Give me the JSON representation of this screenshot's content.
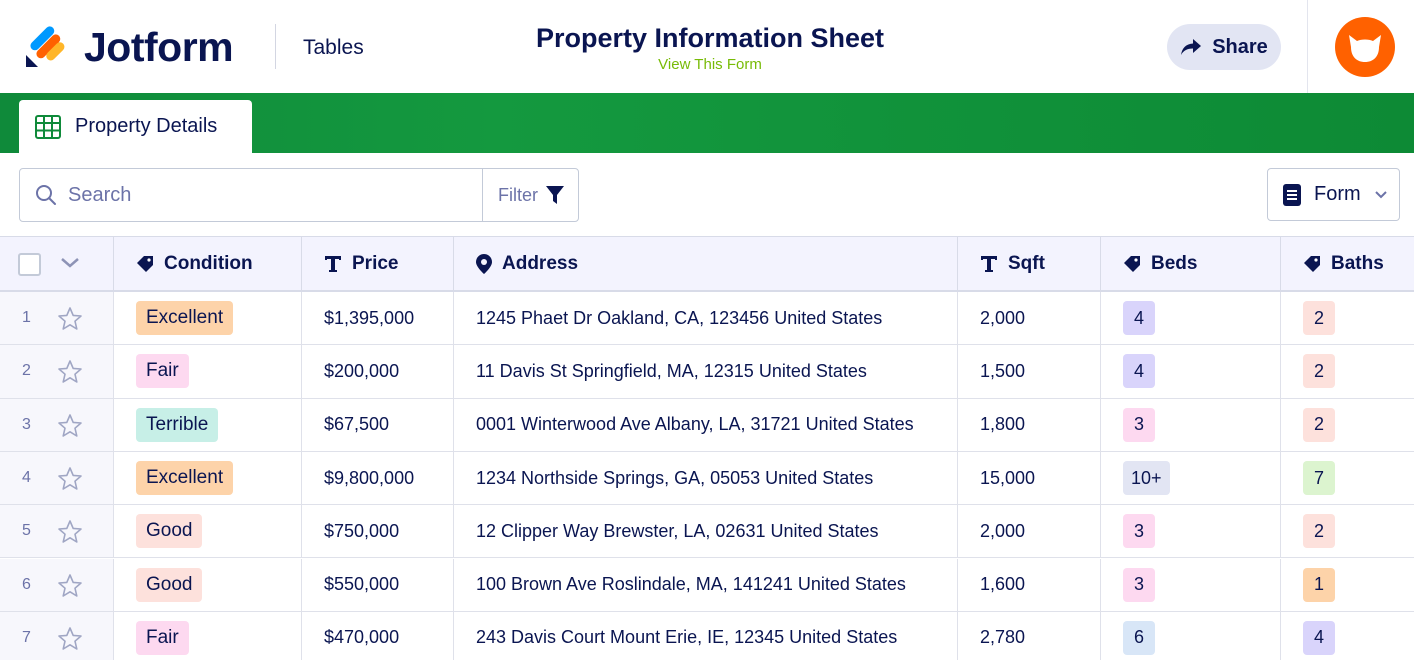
{
  "header": {
    "brand": "Jotform",
    "section": "Tables",
    "title": "Property Information Sheet",
    "view_form": "View This Form",
    "share_label": "Share"
  },
  "tab": {
    "label": "Property Details"
  },
  "toolbar": {
    "search_placeholder": "Search",
    "filter_label": "Filter",
    "form_label": "Form"
  },
  "table": {
    "columns": [
      {
        "label": "Condition",
        "icon": "tag-icon"
      },
      {
        "label": "Price",
        "icon": "text-icon"
      },
      {
        "label": "Address",
        "icon": "location-pin-icon"
      },
      {
        "label": "Sqft",
        "icon": "text-icon"
      },
      {
        "label": "Beds",
        "icon": "tag-icon"
      },
      {
        "label": "Baths",
        "icon": "tag-icon"
      }
    ],
    "rows": [
      {
        "num": "1",
        "condition": "Excellent",
        "condition_color": "#fdd3a9",
        "price": "$1,395,000",
        "address": "1245 Phaet Dr  Oakland, CA, 123456  United States",
        "sqft": "2,000",
        "beds": "4",
        "beds_color": "#d9d4fb",
        "baths": "2",
        "baths_color": "#fde1dc"
      },
      {
        "num": "2",
        "condition": "Fair",
        "condition_color": "#fdd9f0",
        "price": "$200,000",
        "address": "11 Davis  St Springfield, MA, 12315  United States",
        "sqft": "1,500",
        "beds": "4",
        "beds_color": "#d9d4fb",
        "baths": "2",
        "baths_color": "#fde1dc"
      },
      {
        "num": "3",
        "condition": "Terrible",
        "condition_color": "#c7efe7",
        "price": "$67,500",
        "address": "0001 Winterwood  Ave Albany, LA, 31721  United States",
        "sqft": "1,800",
        "beds": "3",
        "beds_color": "#fdd9f0",
        "baths": "2",
        "baths_color": "#fde1dc"
      },
      {
        "num": "4",
        "condition": "Excellent",
        "condition_color": "#fdd3a9",
        "price": "$9,800,000",
        "address": "1234 Northside  Springs, GA, 05053  United States",
        "sqft": "15,000",
        "beds": "10+",
        "beds_color": "#e2e5f3",
        "baths": "7",
        "baths_color": "#dcf4cf"
      },
      {
        "num": "5",
        "condition": "Good",
        "condition_color": "#fde1dc",
        "price": "$750,000",
        "address": "12 Clipper  Way Brewster, LA, 02631  United States",
        "sqft": "2,000",
        "beds": "3",
        "beds_color": "#fdd9f0",
        "baths": "2",
        "baths_color": "#fde1dc"
      },
      {
        "num": "6",
        "condition": "Good",
        "condition_color": "#fde1dc",
        "price": "$550,000",
        "address": "100 Brown  Ave Roslindale, MA, 141241  United States",
        "sqft": "1,600",
        "beds": "3",
        "beds_color": "#fdd9f0",
        "baths": "1",
        "baths_color": "#fdd3a9"
      },
      {
        "num": "7",
        "condition": "Fair",
        "condition_color": "#fdd9f0",
        "price": "$470,000",
        "address": "243 Davis Court  Mount Erie, IE, 12345  United States",
        "sqft": "2,780",
        "beds": "6",
        "beds_color": "#d8e6f7",
        "baths": "4",
        "baths_color": "#d9d4fb"
      }
    ]
  },
  "colors": {
    "accent_green": "#0f8a3a",
    "brand_navy": "#0a1551",
    "avatar_orange": "#ff6100",
    "link_green": "#78bb07"
  }
}
